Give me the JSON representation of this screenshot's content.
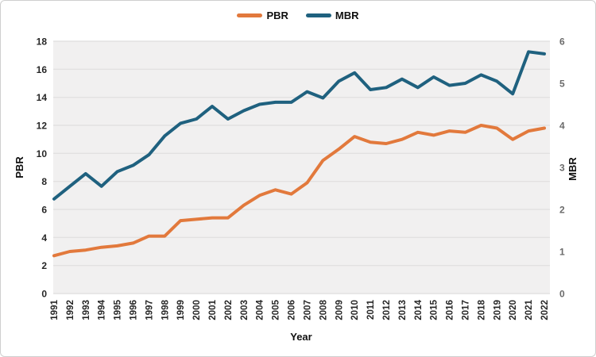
{
  "chart_data": {
    "type": "line",
    "title": "",
    "xlabel": "Year",
    "ylabel_left": "PBR",
    "ylabel_right": "MBR",
    "legend_position": "top",
    "grid": true,
    "plot_bg": "#f1f0f0",
    "grid_color": "#e2e1e1",
    "x": [
      "1991",
      "1992",
      "1993",
      "1994",
      "1995",
      "1996",
      "1997",
      "1998",
      "1999",
      "2000",
      "2001",
      "2002",
      "2003",
      "2004",
      "2005",
      "2006",
      "2007",
      "2008",
      "2009",
      "2010",
      "2011",
      "2012",
      "2013",
      "2014",
      "2015",
      "2016",
      "2017",
      "2018",
      "2019",
      "2020",
      "2021",
      "2022"
    ],
    "series": [
      {
        "name": "PBR",
        "axis": "left",
        "color": "#e2793c",
        "values": [
          2.7,
          3.0,
          3.1,
          3.3,
          3.4,
          3.6,
          4.1,
          4.1,
          5.2,
          5.3,
          5.4,
          5.4,
          6.3,
          7.0,
          7.4,
          7.1,
          7.9,
          9.5,
          10.3,
          11.2,
          10.8,
          10.7,
          11.0,
          11.5,
          11.3,
          11.6,
          11.5,
          12.0,
          11.8,
          11.0,
          11.6,
          11.8
        ]
      },
      {
        "name": "MBR",
        "axis": "right",
        "color": "#1f617f",
        "values": [
          2.25,
          2.55,
          2.85,
          2.55,
          2.9,
          3.05,
          3.3,
          3.75,
          4.05,
          4.15,
          4.45,
          4.15,
          4.35,
          4.5,
          4.55,
          4.55,
          4.8,
          4.65,
          5.05,
          5.25,
          4.85,
          4.9,
          5.1,
          4.9,
          5.15,
          4.95,
          5.0,
          5.2,
          5.05,
          4.75,
          5.75,
          5.7
        ]
      }
    ],
    "left_axis": {
      "min": 0,
      "max": 18,
      "ticks": [
        0,
        2,
        4,
        6,
        8,
        10,
        12,
        14,
        16,
        18
      ]
    },
    "right_axis": {
      "min": 0,
      "max": 6,
      "ticks": [
        0,
        1,
        2,
        3,
        4,
        5,
        6
      ]
    }
  }
}
